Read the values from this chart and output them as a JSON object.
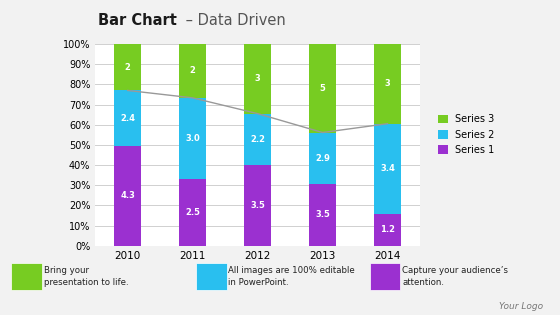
{
  "title_bold": "Bar Chart",
  "title_normal": " – Data Driven",
  "years": [
    "2010",
    "2011",
    "2012",
    "2013",
    "2014"
  ],
  "series1": [
    4.3,
    2.5,
    3.5,
    3.5,
    1.2
  ],
  "series2": [
    2.4,
    3.0,
    2.2,
    2.9,
    3.4
  ],
  "series3": [
    2,
    2,
    3,
    5,
    3
  ],
  "series1_color": "#9B30D0",
  "series2_color": "#29BFEF",
  "series3_color": "#77CC22",
  "bar_width": 0.42,
  "ytick_labels": [
    "0%",
    "10%",
    "20%",
    "30%",
    "40%",
    "50%",
    "60%",
    "70%",
    "80%",
    "90%",
    "100%"
  ],
  "series_labels": [
    "Series 3",
    "Series 2",
    "Series 1"
  ],
  "legend_colors": [
    "#77CC22",
    "#29BFEF",
    "#9B30D0"
  ],
  "footer_texts": [
    "Bring your\npresentation to life.",
    "All images are 100% editable\nin PowerPoint.",
    "Capture your audience’s\nattention."
  ],
  "footer_colors": [
    "#77CC22",
    "#29BFEF",
    "#9B30D0"
  ],
  "watermark": "Your Logo",
  "bg_color": "#f2f2f2",
  "plot_bg_color": "#ffffff",
  "grid_color": "#d0d0d0",
  "line_color": "#999999",
  "footer_bg": "#e0e0e0"
}
